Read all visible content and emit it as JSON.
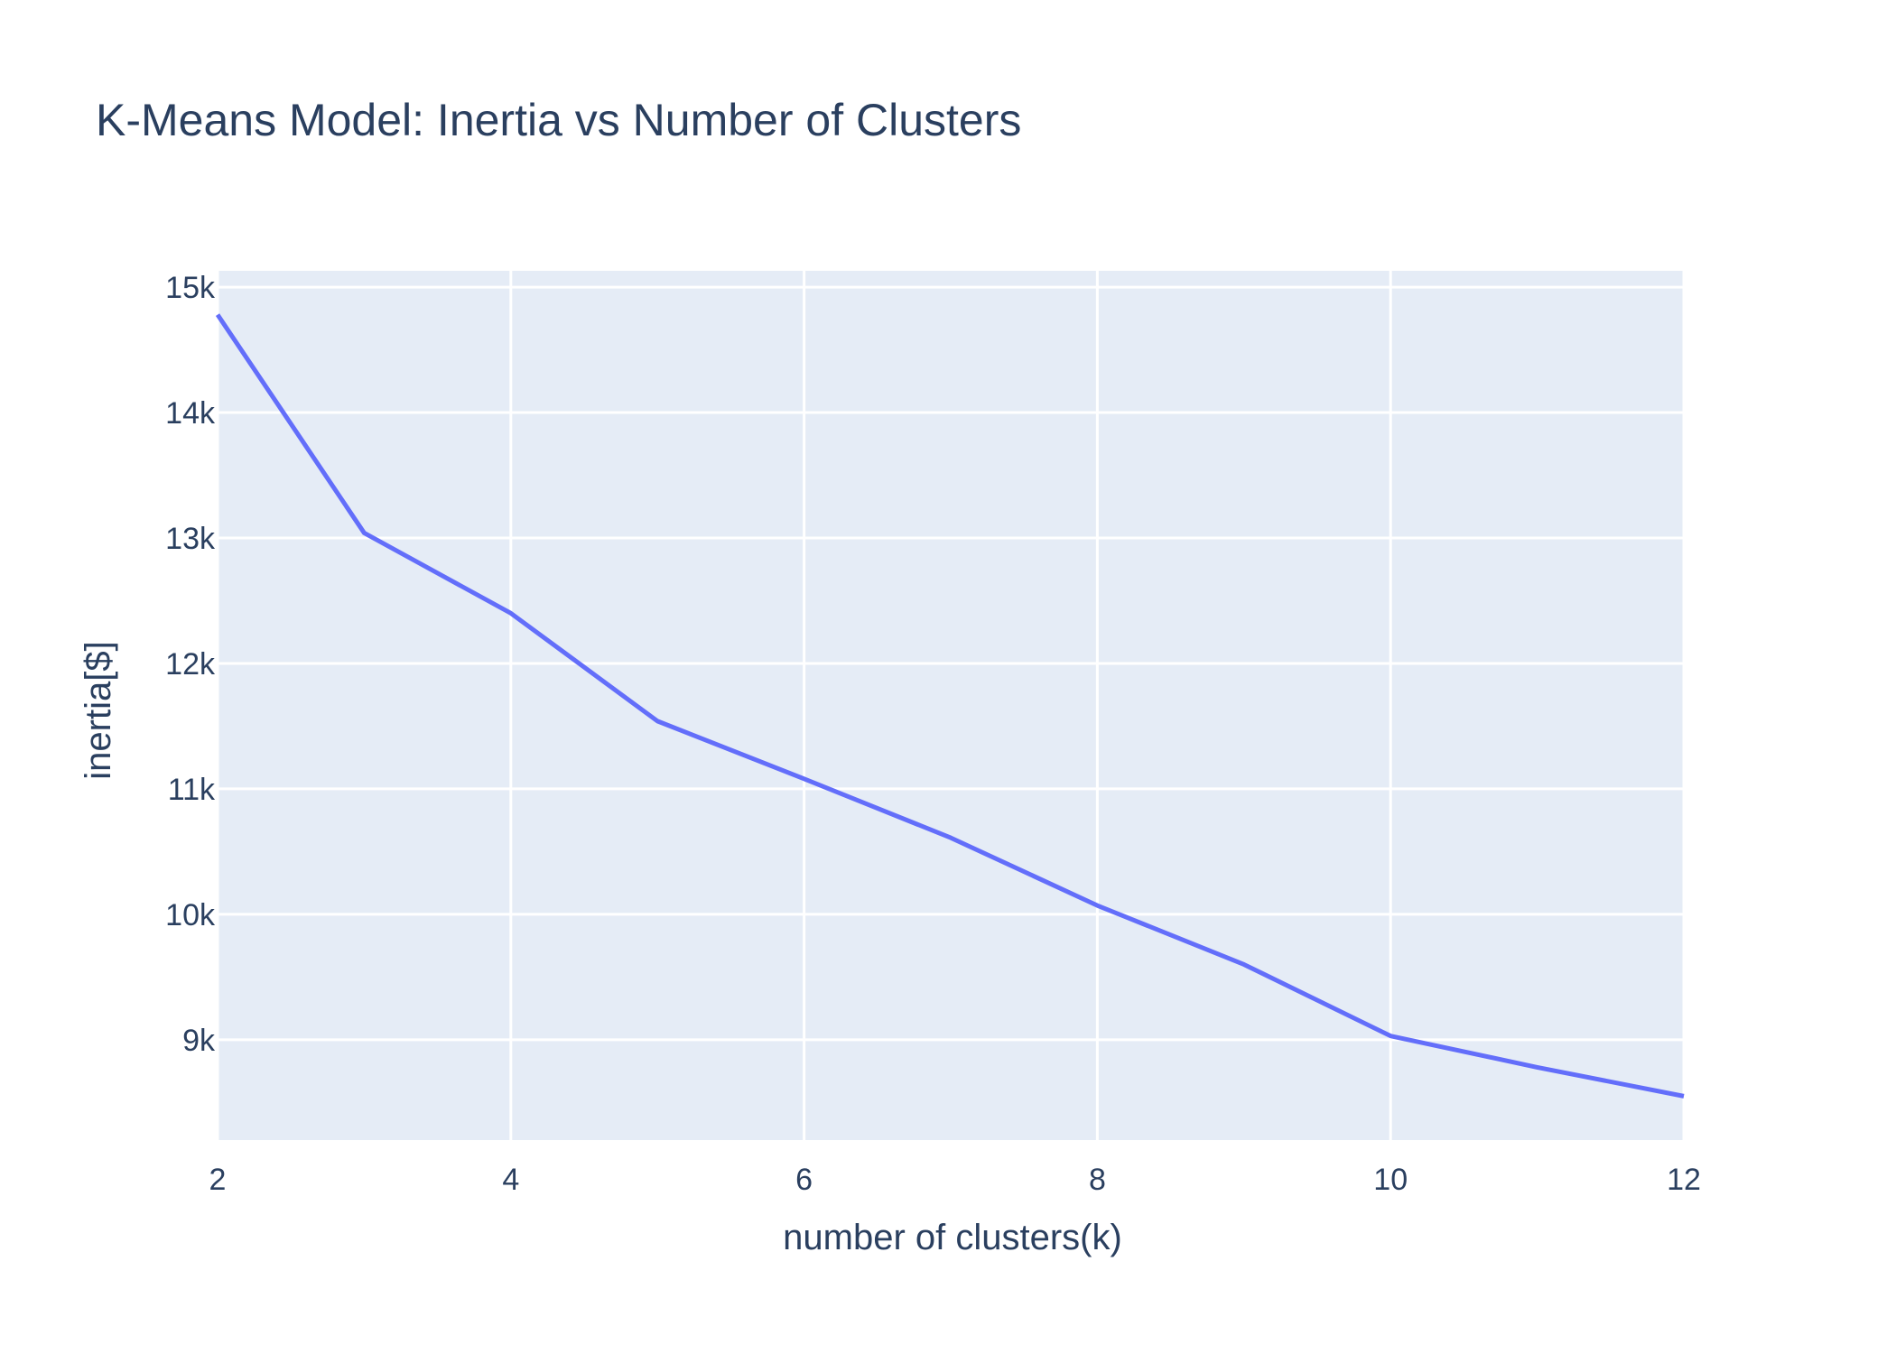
{
  "chart_data": {
    "type": "line",
    "title": "K-Means Model: Inertia vs Number of Clusters",
    "xlabel": "number of clusters(k)",
    "ylabel": "inertia[$]",
    "x": [
      2,
      3,
      4,
      5,
      6,
      7,
      8,
      9,
      10,
      11,
      12
    ],
    "series": [
      {
        "values": [
          14780,
          13040,
          12400,
          11540,
          11080,
          10610,
          10070,
          9600,
          9030,
          8780,
          8550
        ]
      }
    ],
    "xlim": [
      2,
      12
    ],
    "ylim": [
      8200,
      15130
    ],
    "x_ticks": [
      2,
      4,
      6,
      8,
      10,
      12
    ],
    "x_tick_labels": [
      "2",
      "4",
      "6",
      "8",
      "10",
      "12"
    ],
    "y_ticks": [
      9000,
      10000,
      11000,
      12000,
      13000,
      14000,
      15000
    ],
    "y_tick_labels": [
      "9k",
      "10k",
      "11k",
      "12k",
      "13k",
      "14k",
      "15k"
    ],
    "grid": true,
    "legend": "none",
    "colors": {
      "line": "#636efa",
      "plot_background": "#e5ecf6",
      "grid": "#ffffff",
      "text": "#2a3f5f"
    }
  }
}
